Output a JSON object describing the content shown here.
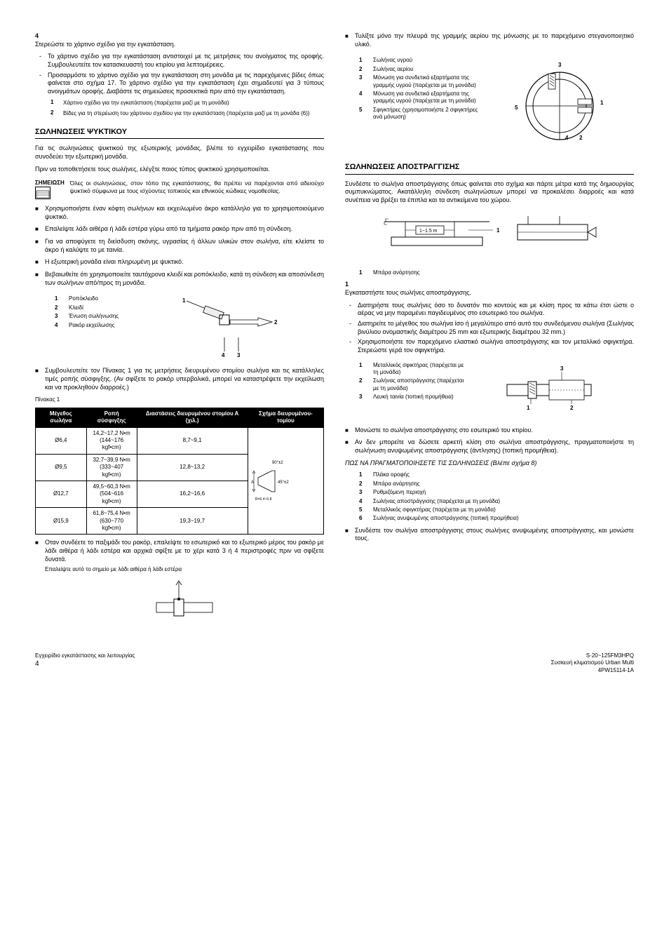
{
  "left": {
    "step4": {
      "num": "4",
      "text": "Στερεώστε το χάρτινο σχέδιο για την εγκατάσταση.",
      "dash1": "Το χάρτινο σχέδιο για την εγκατάσταση αντιστοιχεί με τις μετρήσεις του ανοίγματος της οροφής. Συμβου­λευτείτε τον κατασκευαστή του κτιρίου για λεπτομέρειες.",
      "dash2": "Προσαρμόστε το χάρτινο σχέδιο για την εγκατάσταση στη μονάδα με τις παρεχόμενες βίδες όπως φαίνεται στο σχήμα 17. Το χάρτινο σχέδιο για την εγκατάσταση έχει σημαδευτεί για 3 τύπους ανοιγμάτων οροφής. Διαβάστε τις σημειώσεις προσεκτικά πριν από την εγκατάσταση.",
      "sub1n": "1",
      "sub1": "Χάρτινο σχέδιο για την εγκατάσταση (παρέχεται μαζί με τη μονάδα)",
      "sub2n": "2",
      "sub2": "Βίδες για τη στερέωση του χάρτινου σχεδίου για την εγκατάσταση (παρέχεται μαζί με τη μονάδα (6))"
    },
    "h1": "ΣΩΛΗΝΩΣΕΙΣ ΨΥΚΤΙΚΟΥ",
    "p1": "Για τις σωληνώσεις ψυκτικού της εξωτερικής μονάδας, βλέπε το εγχειρίδιο εγκατάστασης που συνοδεύει την εξωτερική μονάδα.",
    "p2": "Πριν να τοποθετήσετε τους σωλήνες, ελέγξτε ποιος τύπος ψυκτικού χρησιμοποιείται.",
    "note_label": "ΣΗΜΕΙΩΣΗ",
    "note_text": "Όλες οι σωληνώσεις, στον τόπο της εγκατάστασης, θα πρέπει να παρέχονται από αδειούχο ψυκτικό σύμφωνα με τους ισχύοντες τοπικούς και εθνικούς κώδικες νομοθεσίας.",
    "sq1": "Χρησιμοποιήστε έναν κόφτη σωλήνων και εκχειλωμένο άκρο κατάλληλο για το χρησιμοποιούμενο ψυκτικό.",
    "sq2": "Επαλείψτε λάδι αιθέρα ή λάδι εστέρα γύρω από τα τμήματα ρακόρ πριν από τη σύνδεση.",
    "sq3": "Για να αποφύγετε τη διείσδυση σκόνης, υγρασίας ή άλλων υλικών στον σωλήνα, είτε κλείστε το άκρο ή καλύψτε το με ταινία.",
    "sq4": "Η εξωτερική μονάδα είναι πληρωμένη με ψυκτικό.",
    "sq5": "Βεβαιωθείτε ότι χρησιμοποιείτε ταυτόχρονα κλειδί και ροπό­κλειδο, κατά τη σύνδεση και αποσύνδεση των σωλήνων από/προς τη μονάδα.",
    "leg1": {
      "n1": "1",
      "t1": "Ροπόκλειδο",
      "n2": "2",
      "t2": "Κλειδί",
      "n3": "3",
      "t3": "Ένωση σωλήνωσης",
      "n4": "4",
      "t4": "Ρακόρ εκχείλωσης"
    },
    "sq6": "Συμβουλευτείτε τον Πίνακας 1 για τις μετρήσεις διευρυ­μένου στομίου σωλήνα και τις κατάλληλες τιμές ροπής σύσφιγξης. (Αν σφίξετε το ρακόρ υπερβολικά, μπορεί να καταστρέψετε την εκχείλωση και να προκληθούν διαρροές.)",
    "table_caption": "Πίνακας 1",
    "table": {
      "h1": "Μέγεθος σωλήνα",
      "h2": "Ροπή σύσφιγξης",
      "h3": "Διαστάσεις διευρυμένου στομίου Α (χιλ.)",
      "h4": "Σχήμα διευρυμένου­ τομίου",
      "rows": [
        {
          "c1": "Ø6,4",
          "c2": "14,2~17,2 N•m\n(144~176 kgf•cm)",
          "c3": "8,7~9,1"
        },
        {
          "c1": "Ø9,5",
          "c2": "32,7~39,9 N•m\n(333~407 kgf•cm)",
          "c3": "12,8~13,2"
        },
        {
          "c1": "Ø12,7",
          "c2": "49,5~60,3 N•m\n(504~616 kgf•cm)",
          "c3": "16,2~16,6"
        },
        {
          "c1": "Ø15,9",
          "c2": "61,8~75,4 N•m\n(630~770 kgf•cm)",
          "c3": "19,3~19,7"
        }
      ]
    },
    "sq7": "Οταν συνδέετε το παξιμάδι του ρακόρ, επαλείψτε το εσωτερικό και το εξωτερικό μέρος του ρακόρ με λάδι αιθέρα ή λάδι εστέρα και αρχικά σφίξτε με το χέρι κατά 3 ή 4 περιστροφές πριν να σφίξετε δυνατά.",
    "sq7b": "Επαλείψτε αυτό το σημείο με λάδι αιθέρα ή λάδι εστέρα"
  },
  "right": {
    "sq1": "Τυλίξτε μόνο την πλευρά της γραμμής αερίου της μόνωσης με το παρεχόμενο στεγανοποιητικό υλικό.",
    "leg1": {
      "n1": "1",
      "t1": "Σωλήνας υγρού",
      "n2": "2",
      "t2": "Σωλήνας αερίου",
      "n3": "3",
      "t3": "Μόνωση για συνδετικά εξαρτήματα της γραμμής υγρού (παρέχεται με τη μονάδα)",
      "n4": "4",
      "t4": "Μόνωση για συνδετικά εξαρτήματα της γραμμής υγρού (παρέχεται με τη μονάδα)",
      "n5": "5",
      "t5": "Σφιγκτήρες (χρησιμοποιήστε 2 σφιγκτήρες ανά μόνωση)"
    },
    "h2": "ΣΩΛΗΝΩΣΕΙΣ ΑΠΟΣΤΡΑΓΓΙΣΗΣ",
    "p1": "Συνδέστε το σωλήνα αποστράγγισης όπως φαίνεται στο σχήμα και πάρτε μέτρα κατά της δημιουργίας συμπυκνώματος. Ακατάλληλη σύνδεση σωληνώσεων μπορεί να προκαλέσει διαρροές και κατά συνέπεια να βρέξει τα έπιπλα και τα αντικείμενα του χώρου.",
    "fig_label": "1~1.5 m",
    "leg_bar": {
      "n1": "1",
      "t1": "Μπάρα ανάρτησης"
    },
    "step1n": "1",
    "step1": "Εγκαταστήστε τους σωλήνες αποστράγγισης.",
    "d1": "Διατηρήστε τους σωλήνες όσο το δυνατόν πιο κοντούς και με κλίση προς τα κάτω έτσι ώστε ο αέρας να μην παραμένει παγιδευμένος στο εσωτερικό του σωλήνα.",
    "d2": "Διατηρείτε το μέγεθος του σωλήνα ίσο ή μεγαλύτερο από αυτό του συνδεόμενου σωλήνα (Σωλήνας βινύλιου ονομαστικής διαμέτρου 25 mm και εξωτερικής διαμέτρου 32 mm.)",
    "d3": "Χρησιμοποιήστε τον παρεχόμενο ελαστικό σωλήνα αποστράγγισης και τον μεταλλικό σφιγκτήρα. Στερεώστε γερά τον σφιγκτήρα.",
    "leg2": {
      "n1": "1",
      "t1": "Μεταλλικός σφικτήρας (παρέχεται με τη μονάδα)",
      "n2": "2",
      "t2": "Σωλήνας αποστράγγισης (παρέχεται με τη μονάδα)",
      "n3": "3",
      "t3": "Λευκή ταινία (τοπική προμήθεια)"
    },
    "sq2": "Μονώστε το σωλήνα αποστράγγισης στο εσωτερικό του κτιρίου.",
    "sq3": "Αν δεν μπορείτε να δώσετε αρκετή κλίση στο σωλήνα αποστράγγισης, πραγματοποιήστε τη σωλήνωση ανυψωμένης αποστράγγισης (άντλησης) (τοπική προμήθεια).",
    "p2": "ΠΩΣ ΝΑ ΠΡΑΓΜΑΤΟΠΟΙΗΣΕΤΕ ΤΙΣ ΣΩΛΗΝΩΣΕΙΣ (Βλέπε σχήμα 8)",
    "leg3": {
      "n1": "1",
      "t1": "Πλάκα οροφής",
      "n2": "2",
      "t2": "Μπάρα ανάρτησης",
      "n3": "3",
      "t3": "Ρυθμιζόμενη περιοχή",
      "n4": "4",
      "t4": "Σωλήνας αποστράγγισης (παρέχεται με τη μονάδα)",
      "n5": "5",
      "t5": "Μεταλλικός σφιγκτήρας (παρέχεται με τη μονάδα)",
      "n6": "6",
      "t6": "Σωλήνας ανυψωμένης αποστράγγισης (τοπική προμήθεια)"
    },
    "sq4": "Συνδέστε τον σωλήνα αποστράγγισης στους σωλήνες ανυψωμένης αποστράγγισης, και μονώστε τους."
  },
  "footer": {
    "left1": "Εγχειρίδιο εγκατάστασης και λειτουργίας",
    "left2": "4",
    "right1": "S·20~125FM3HPQ",
    "right2": "Συσκευή κλιματισμού Urban Multi",
    "right3": "4PW15114-1A"
  }
}
